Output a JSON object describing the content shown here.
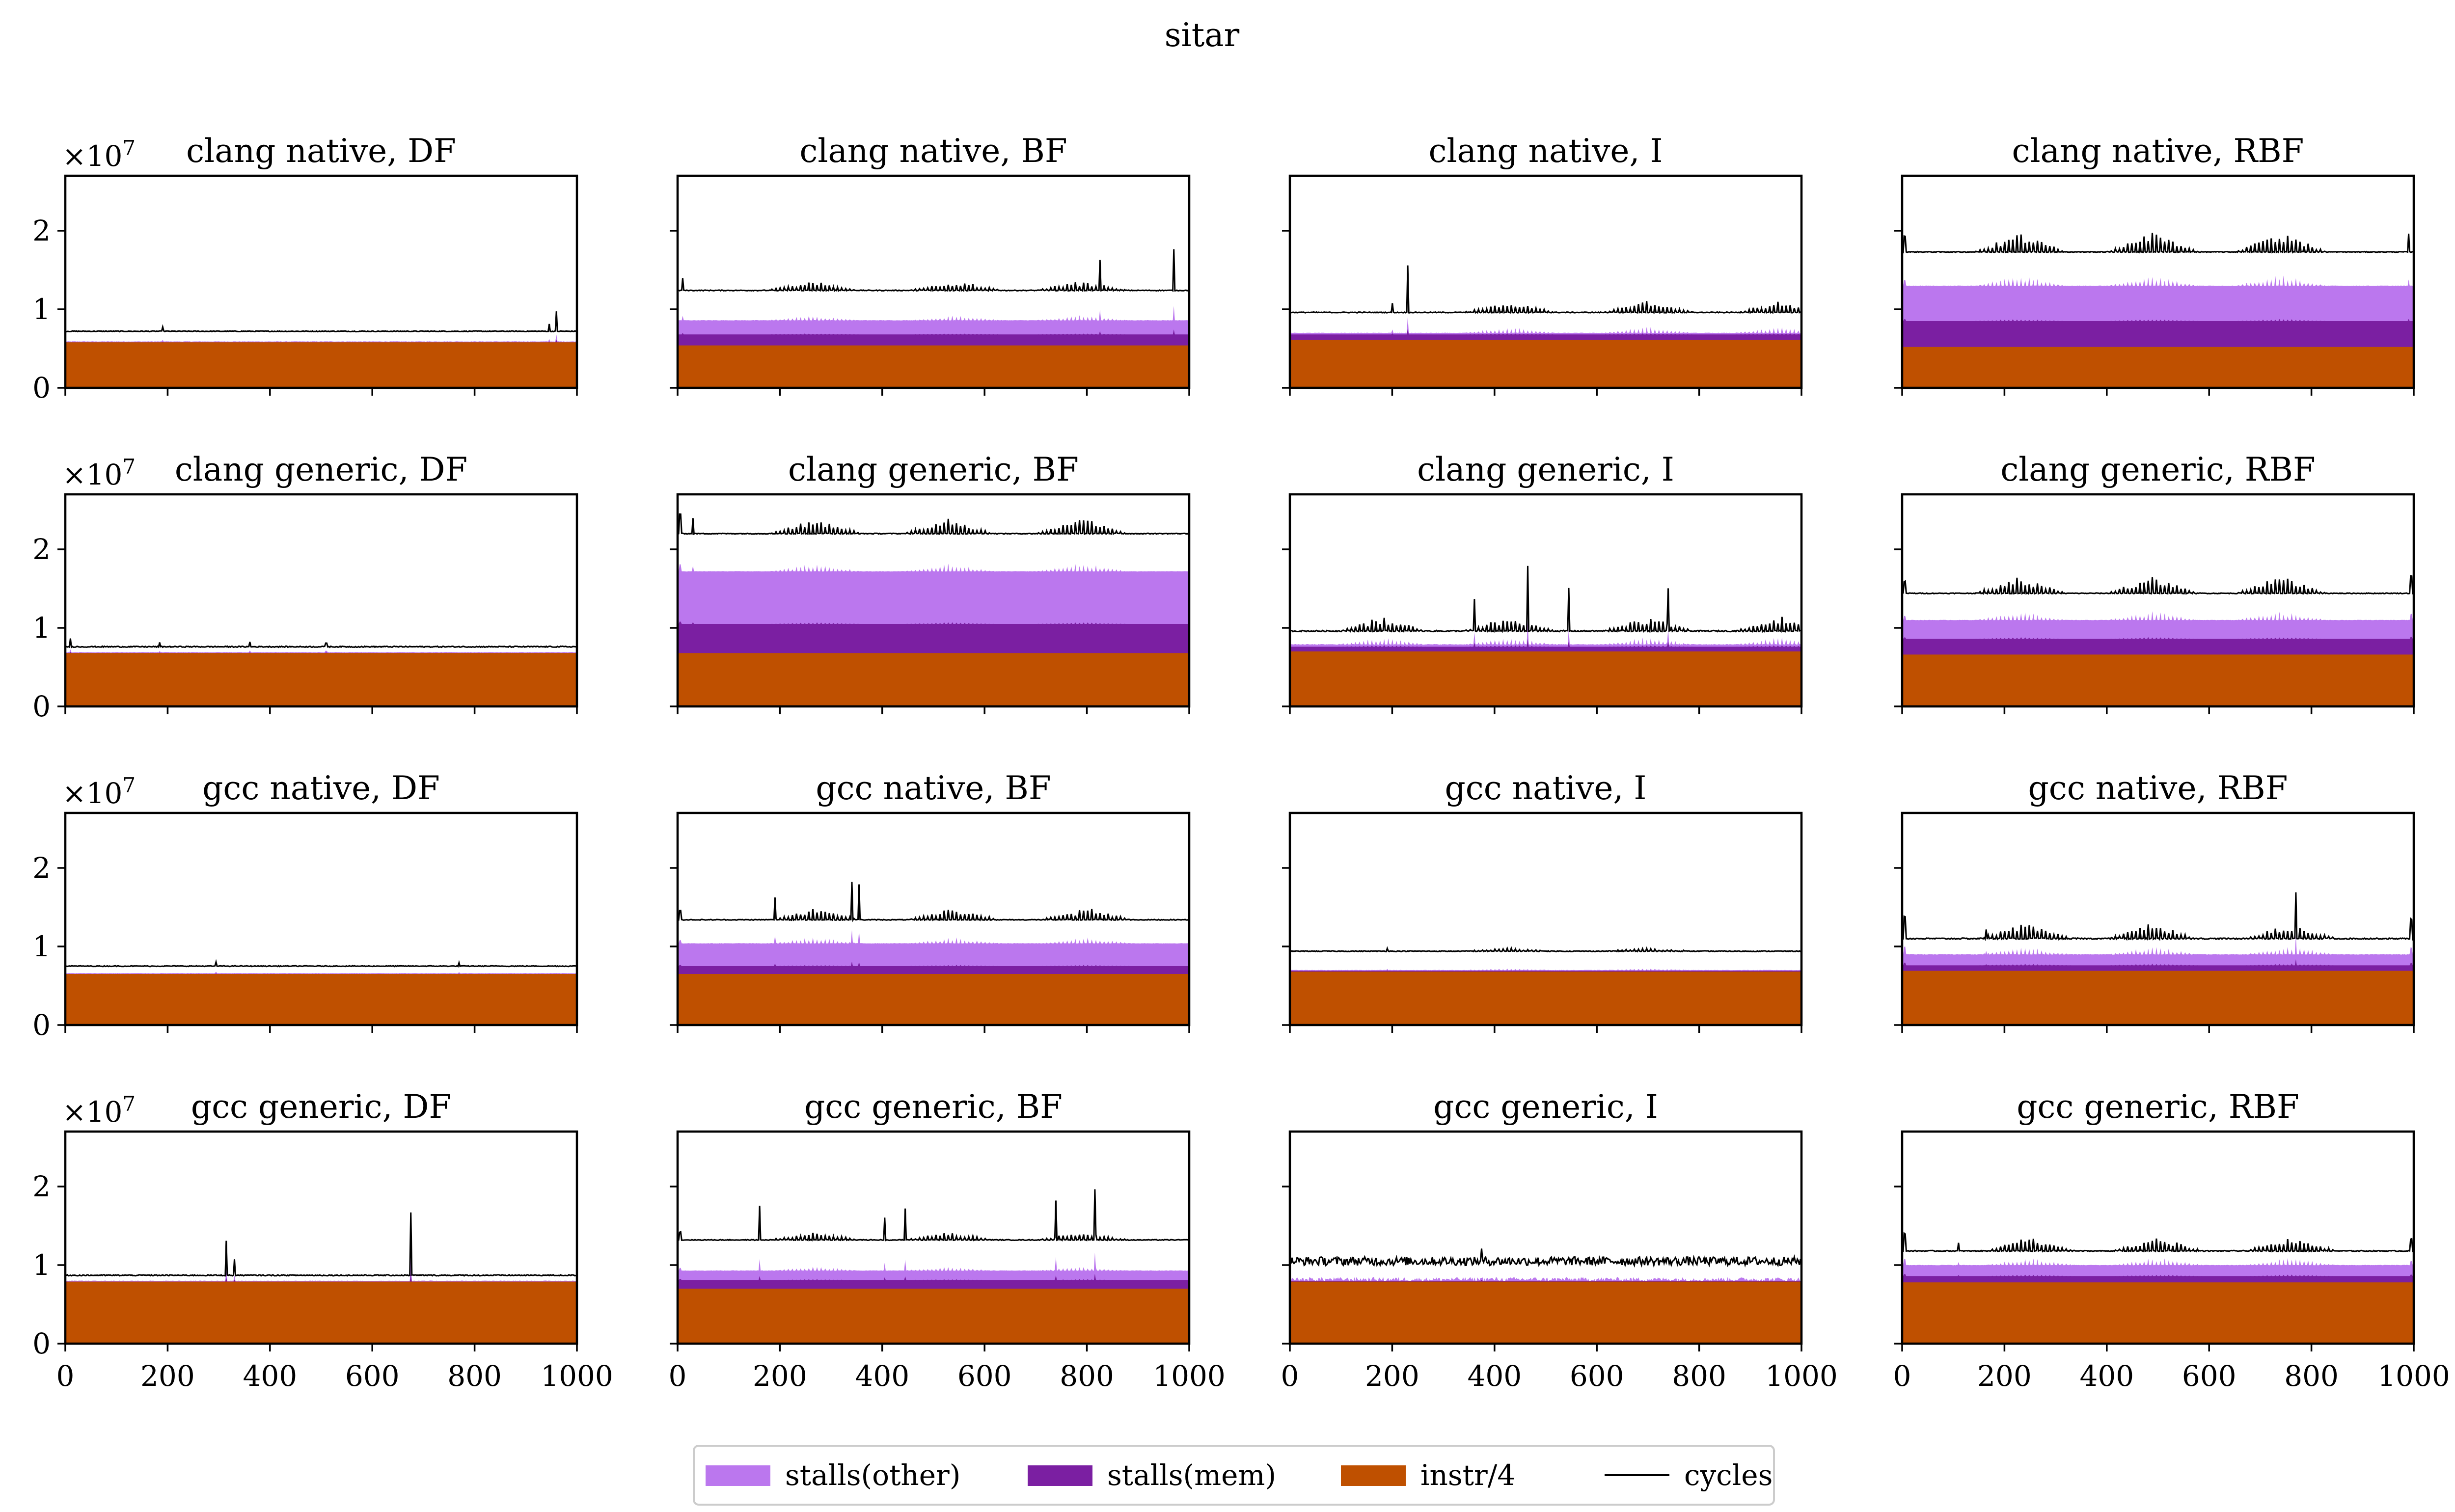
{
  "figure_title": "sitar",
  "colors": {
    "stalls_other": "#bb77ee",
    "stalls_mem": "#7b1fa2",
    "instr": "#bf5000",
    "cycles": "#000000"
  },
  "axis_common": {
    "xlim": [
      0,
      1000
    ],
    "ylim": [
      0,
      27000000
    ],
    "xticks": [
      0,
      200,
      400,
      600,
      800,
      1000
    ],
    "yticks": [
      0,
      1,
      2
    ],
    "y_multiplier": "×10",
    "y_multiplier_exp": "7"
  },
  "legend": [
    {
      "key": "stalls_other",
      "label": "stalls(other)",
      "kind": "patch"
    },
    {
      "key": "stalls_mem",
      "label": "stalls(mem)",
      "kind": "patch"
    },
    {
      "key": "instr",
      "label": "instr/4",
      "kind": "patch"
    },
    {
      "key": "cycles",
      "label": "cycles",
      "kind": "line"
    }
  ],
  "chart_data": [
    {
      "type": "area",
      "title": "clang native, DF",
      "row": 0,
      "col": 0,
      "instr": 5.8,
      "mem": 5.8,
      "other": 5.9,
      "cycles": 7.2,
      "noise": 0.05,
      "burst_amp": 0,
      "bursts": [],
      "spikes": [
        [
          190,
          0.6
        ],
        [
          960,
          2.5
        ],
        [
          945,
          0.9
        ]
      ]
    },
    {
      "type": "area",
      "title": "clang native, BF",
      "row": 0,
      "col": 1,
      "instr": 5.4,
      "mem": 6.8,
      "other": 8.6,
      "cycles": 12.4,
      "noise": 0.05,
      "burst_amp": 1.2,
      "bursts": [
        265,
        545,
        790
      ],
      "spikes": [
        [
          10,
          1.6
        ],
        [
          825,
          3.2
        ],
        [
          970,
          5.2
        ]
      ]
    },
    {
      "type": "area",
      "title": "clang native, I",
      "row": 0,
      "col": 2,
      "instr": 6.1,
      "mem": 6.8,
      "other": 7.0,
      "cycles": 9.6,
      "noise": 0.05,
      "burst_amp": 1.5,
      "bursts": [
        430,
        700,
        960
      ],
      "spikes": [
        [
          230,
          6.0
        ],
        [
          200,
          1.2
        ]
      ]
    },
    {
      "type": "area",
      "title": "clang native, RBF",
      "row": 0,
      "col": 3,
      "instr": 5.2,
      "mem": 8.5,
      "other": 13.0,
      "cycles": 17.3,
      "noise": 0.05,
      "burst_amp": 2.6,
      "bursts": [
        230,
        490,
        740
      ],
      "spikes": [
        [
          5,
          2.0
        ],
        [
          990,
          2.3
        ]
      ]
    },
    {
      "type": "area",
      "title": "clang generic, DF",
      "row": 1,
      "col": 0,
      "instr": 6.8,
      "mem": 6.8,
      "other": 6.9,
      "cycles": 7.6,
      "noise": 0.07,
      "burst_amp": 0,
      "bursts": [],
      "spikes": [
        [
          10,
          1.0
        ],
        [
          185,
          0.5
        ],
        [
          360,
          0.6
        ],
        [
          510,
          0.5
        ]
      ]
    },
    {
      "type": "area",
      "title": "clang generic, BF",
      "row": 1,
      "col": 1,
      "instr": 6.8,
      "mem": 10.5,
      "other": 17.2,
      "cycles": 22.0,
      "noise": 0.05,
      "burst_amp": 2.0,
      "bursts": [
        270,
        530,
        790
      ],
      "spikes": [
        [
          5,
          2.5
        ],
        [
          30,
          2.0
        ]
      ]
    },
    {
      "type": "area",
      "title": "clang generic, I",
      "row": 1,
      "col": 2,
      "instr": 7.0,
      "mem": 7.6,
      "other": 7.9,
      "cycles": 9.6,
      "noise": 0.08,
      "burst_amp": 1.8,
      "bursts": [
        180,
        430,
        700,
        960
      ],
      "spikes": [
        [
          360,
          3.8
        ],
        [
          465,
          7.5
        ],
        [
          545,
          5.5
        ],
        [
          740,
          5.5
        ]
      ]
    },
    {
      "type": "area",
      "title": "clang generic, RBF",
      "row": 1,
      "col": 3,
      "instr": 6.6,
      "mem": 8.6,
      "other": 11.0,
      "cycles": 14.4,
      "noise": 0.05,
      "burst_amp": 2.2,
      "bursts": [
        230,
        490,
        740
      ],
      "spikes": [
        [
          5,
          1.5
        ],
        [
          995,
          2.2
        ]
      ]
    },
    {
      "type": "area",
      "title": "gcc native, DF",
      "row": 2,
      "col": 0,
      "instr": 6.5,
      "mem": 6.5,
      "other": 6.6,
      "cycles": 7.5,
      "noise": 0.05,
      "burst_amp": 0,
      "bursts": [],
      "spikes": [
        [
          295,
          0.5
        ],
        [
          770,
          0.4
        ]
      ]
    },
    {
      "type": "area",
      "title": "gcc native, BF",
      "row": 2,
      "col": 1,
      "instr": 6.5,
      "mem": 7.5,
      "other": 10.4,
      "cycles": 13.4,
      "noise": 0.05,
      "burst_amp": 1.5,
      "bursts": [
        270,
        540,
        800
      ],
      "spikes": [
        [
          190,
          2.8
        ],
        [
          340,
          4.8
        ],
        [
          355,
          4.5
        ],
        [
          5,
          1.2
        ]
      ]
    },
    {
      "type": "area",
      "title": "gcc native, I",
      "row": 2,
      "col": 2,
      "instr": 6.8,
      "mem": 6.9,
      "other": 7.0,
      "cycles": 9.4,
      "noise": 0.05,
      "burst_amp": 0.4,
      "bursts": [
        430,
        700
      ],
      "spikes": [
        [
          190,
          0.4
        ]
      ]
    },
    {
      "type": "area",
      "title": "gcc native, RBF",
      "row": 2,
      "col": 3,
      "instr": 6.9,
      "mem": 7.6,
      "other": 9.0,
      "cycles": 11.0,
      "noise": 0.08,
      "burst_amp": 2.0,
      "bursts": [
        240,
        490,
        760
      ],
      "spikes": [
        [
          5,
          2.8
        ],
        [
          165,
          1.2
        ],
        [
          770,
          4.5
        ],
        [
          995,
          2.5
        ]
      ]
    },
    {
      "type": "area",
      "title": "gcc generic, DF",
      "row": 3,
      "col": 0,
      "instr": 7.9,
      "mem": 7.9,
      "other": 8.0,
      "cycles": 8.7,
      "noise": 0.07,
      "burst_amp": 0,
      "bursts": [],
      "spikes": [
        [
          315,
          4.4
        ],
        [
          330,
          2.0
        ],
        [
          675,
          8.0
        ]
      ]
    },
    {
      "type": "area",
      "title": "gcc generic, BF",
      "row": 3,
      "col": 1,
      "instr": 7.0,
      "mem": 8.1,
      "other": 9.3,
      "cycles": 13.2,
      "noise": 0.05,
      "burst_amp": 1.0,
      "bursts": [
        270,
        530,
        790
      ],
      "spikes": [
        [
          160,
          4.3
        ],
        [
          405,
          2.8
        ],
        [
          445,
          4.0
        ],
        [
          740,
          5.0
        ],
        [
          815,
          6.5
        ],
        [
          5,
          1.0
        ]
      ]
    },
    {
      "type": "area",
      "title": "gcc generic, I",
      "row": 3,
      "col": 2,
      "instr": 7.9,
      "mem": 8.0,
      "other": 8.2,
      "cycles": 10.5,
      "noise": 0.55,
      "burst_amp": 0,
      "bursts": [],
      "spikes": [
        [
          375,
          1.2
        ]
      ]
    },
    {
      "type": "area",
      "title": "gcc generic, RBF",
      "row": 3,
      "col": 3,
      "instr": 7.8,
      "mem": 8.6,
      "other": 10.0,
      "cycles": 11.8,
      "noise": 0.06,
      "burst_amp": 1.8,
      "bursts": [
        250,
        500,
        760
      ],
      "spikes": [
        [
          5,
          2.2
        ],
        [
          110,
          1.0
        ],
        [
          995,
          1.5
        ]
      ]
    }
  ]
}
